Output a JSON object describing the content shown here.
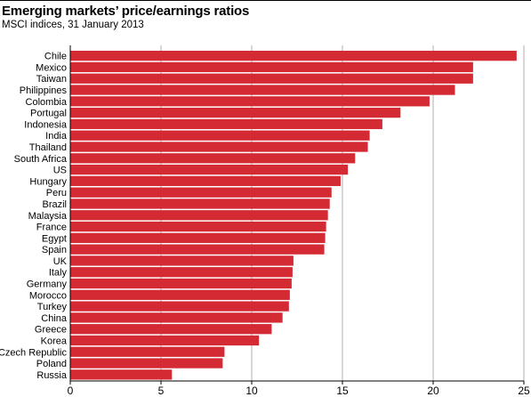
{
  "header": {
    "title": "Emerging markets’ price/earnings ratios",
    "subtitle": "MSCI indices, 31 January 2013"
  },
  "colors": {
    "bar": "#d42a34",
    "grid": "#b5aea3",
    "axis": "#000000"
  },
  "chart_data": {
    "type": "bar",
    "orientation": "horizontal",
    "title": "Emerging markets’ price/earnings ratios",
    "subtitle": "MSCI indices, 31 January 2013",
    "xlabel": "",
    "ylabel": "",
    "xlim": [
      0,
      25
    ],
    "xticks": [
      0,
      5,
      10,
      15,
      20,
      25
    ],
    "grid": "vertical",
    "categories": [
      "Chile",
      "Mexico",
      "Taiwan",
      "Philippines",
      "Colombia",
      "Portugal",
      "Indonesia",
      "India",
      "Thailand",
      "South Africa",
      "US",
      "Hungary",
      "Peru",
      "Brazil",
      "Malaysia",
      "France",
      "Egypt",
      "Spain",
      "UK",
      "Italy",
      "Germany",
      "Morocco",
      "Turkey",
      "China",
      "Greece",
      "Korea",
      "Czech Republic",
      "Poland",
      "Russia"
    ],
    "values": [
      24.6,
      22.2,
      22.2,
      21.2,
      19.8,
      18.2,
      17.2,
      16.5,
      16.4,
      15.7,
      15.3,
      14.9,
      14.4,
      14.3,
      14.2,
      14.1,
      14.05,
      14.0,
      12.3,
      12.25,
      12.2,
      12.1,
      12.05,
      11.7,
      11.1,
      10.4,
      8.5,
      8.4,
      5.6
    ]
  }
}
